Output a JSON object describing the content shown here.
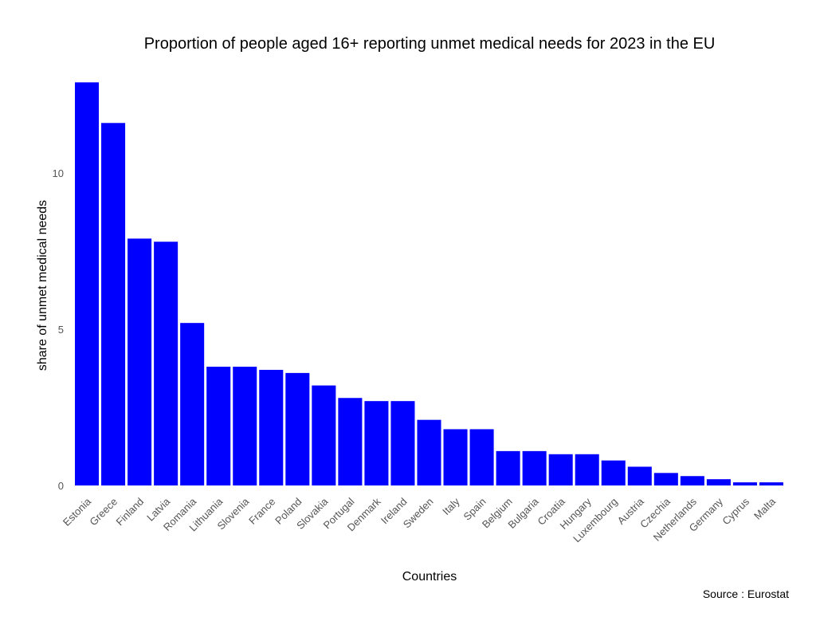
{
  "chart_data": {
    "type": "bar",
    "title": "Proportion of people aged 16+ reporting unmet medical needs for 2023 in the EU",
    "xlabel": "Countries",
    "ylabel": "share of unmet medical needs",
    "caption": "Source : Eurostat",
    "ylim": [
      0,
      13.0
    ],
    "yticks": [
      0,
      5,
      10
    ],
    "grid": false,
    "bar_color": "#0000FF",
    "categories": [
      "Estonia",
      "Greece",
      "Finland",
      "Latvia",
      "Romania",
      "Lithuania",
      "Slovenia",
      "France",
      "Poland",
      "Slovakia",
      "Portugal",
      "Denmark",
      "Ireland",
      "Sweden",
      "Italy",
      "Spain",
      "Belgium",
      "Bulgaria",
      "Croatia",
      "Hungary",
      "Luxembourg",
      "Austria",
      "Czechia",
      "Netherlands",
      "Germany",
      "Cyprus",
      "Malta"
    ],
    "values": [
      12.9,
      11.6,
      7.9,
      7.8,
      5.2,
      3.8,
      3.8,
      3.7,
      3.6,
      3.2,
      2.8,
      2.7,
      2.7,
      2.1,
      1.8,
      1.8,
      1.1,
      1.1,
      1.0,
      1.0,
      0.8,
      0.6,
      0.4,
      0.3,
      0.2,
      0.1,
      0.1
    ]
  }
}
